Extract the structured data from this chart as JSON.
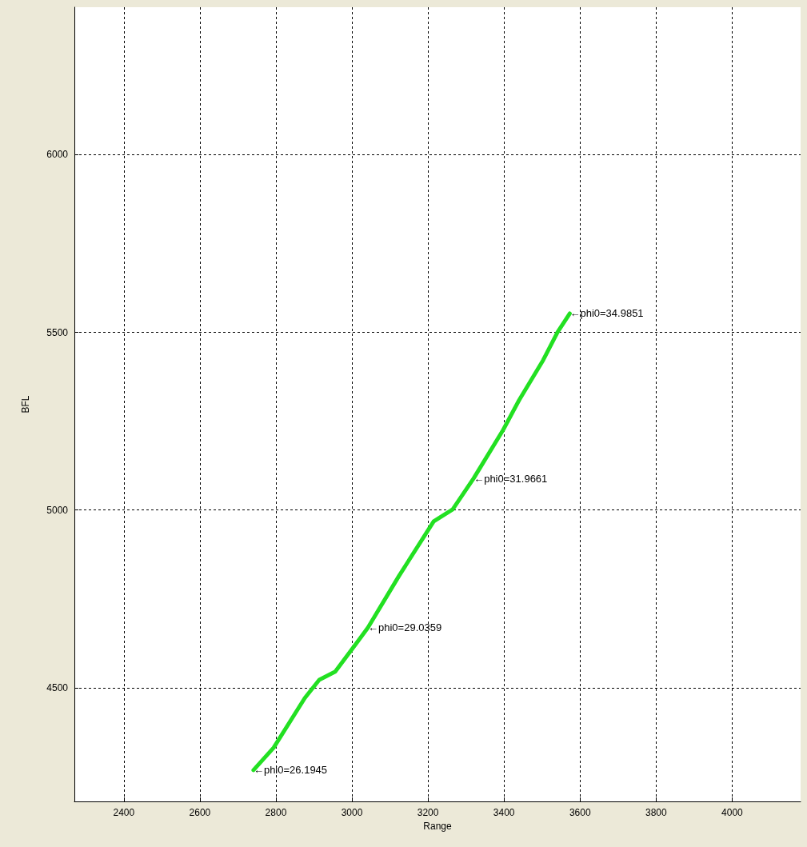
{
  "chart_data": {
    "type": "line",
    "xlabel": "Range",
    "ylabel": "BFL",
    "x": [
      2741,
      2794,
      2876,
      2914,
      2956,
      3011,
      3042,
      3124,
      3215,
      3265,
      3320,
      3398,
      3440,
      3503,
      3541,
      3573
    ],
    "series": [
      {
        "color": "#22e022",
        "values": [
          4268,
          4331,
          4471,
          4522,
          4545,
          4624,
          4669,
          4815,
          4968,
          5002,
          5089,
          5226,
          5310,
          5422,
          5501,
          5553
        ]
      }
    ],
    "xlim": [
      2270,
      4180
    ],
    "xticks": [
      2400,
      2600,
      2800,
      3000,
      3200,
      3400,
      3600,
      3800,
      4000
    ],
    "ylim": [
      4180,
      6415
    ],
    "yticks": [
      4500,
      5000,
      5500,
      6000
    ],
    "grid": true,
    "marker": "none",
    "line_style": "solid",
    "annotations": [
      {
        "text": "←phi0=26.1945",
        "x": 2741,
        "y": 4268
      },
      {
        "text": "←phi0=29.0359",
        "x": 3042,
        "y": 4669
      },
      {
        "text": "←phi0=31.9661",
        "x": 3320,
        "y": 5089
      },
      {
        "text": "←phi0=34.9851",
        "x": 3573,
        "y": 5553
      }
    ]
  }
}
